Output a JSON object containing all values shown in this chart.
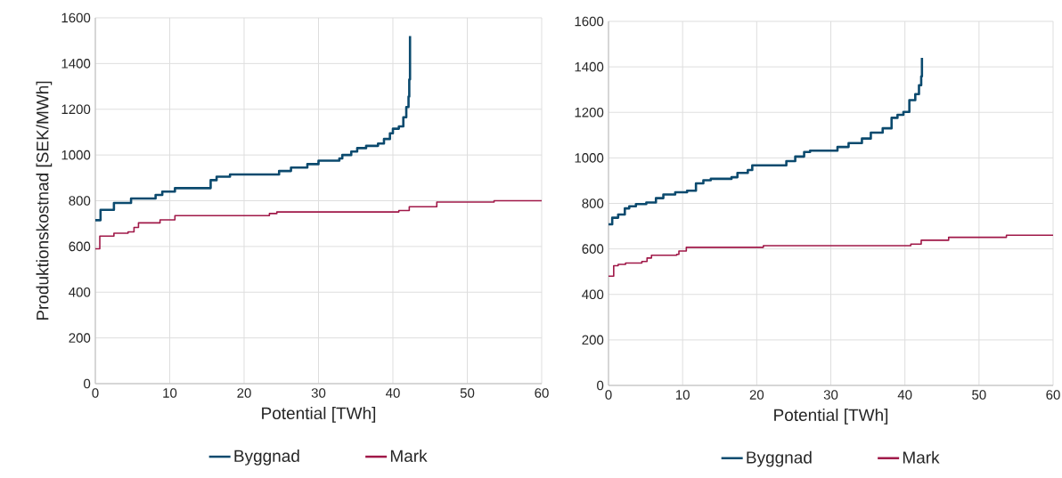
{
  "chart_data": [
    {
      "type": "step",
      "xlabel": "Potential [TWh]",
      "ylabel": "Produktionskostnad [SEK/MWh]",
      "xlim": [
        0,
        60
      ],
      "ylim": [
        0,
        1600
      ],
      "xticks": [
        0,
        10,
        20,
        30,
        40,
        50,
        60
      ],
      "yticks": [
        0,
        200,
        400,
        600,
        800,
        1000,
        1200,
        1400,
        1600
      ],
      "grid": true,
      "legend": "bottom",
      "marker": "none",
      "series": [
        {
          "name": "Byggnad",
          "color": "#0b4a6e",
          "x": [
            0,
            0.7,
            2.5,
            4.8,
            8.1,
            9.0,
            10.7,
            15.5,
            16.3,
            18.1,
            20.1,
            24.7,
            26.3,
            28.5,
            30.0,
            32.8,
            33.2,
            34.4,
            35.2,
            36.4,
            38.0,
            38.8,
            39.6,
            40.0,
            40.8,
            41.4,
            41.8,
            42.1,
            42.2,
            42.3
          ],
          "values": [
            715,
            760,
            790,
            810,
            825,
            840,
            855,
            890,
            905,
            915,
            915,
            930,
            945,
            960,
            975,
            985,
            1000,
            1015,
            1030,
            1040,
            1050,
            1070,
            1095,
            1115,
            1125,
            1165,
            1210,
            1255,
            1330,
            1520
          ]
        },
        {
          "name": "Mark",
          "color": "#a01848",
          "x": [
            0,
            0.6,
            2.5,
            4.4,
            5.2,
            5.8,
            8.7,
            10.7,
            23.4,
            24.4,
            40.8,
            42.2,
            45.9,
            53.6,
            60
          ],
          "values": [
            590,
            645,
            658,
            664,
            683,
            703,
            716,
            735,
            744,
            751,
            757,
            774,
            794,
            800,
            800
          ]
        }
      ]
    },
    {
      "type": "step",
      "xlabel": "Potential [TWh]",
      "xlim": [
        0,
        60
      ],
      "ylim": [
        0,
        1600
      ],
      "xticks": [
        0,
        10,
        20,
        30,
        40,
        50,
        60
      ],
      "yticks": [
        0,
        200,
        400,
        600,
        800,
        1000,
        1200,
        1400,
        1600
      ],
      "grid": true,
      "legend": "bottom",
      "marker": "none",
      "series": [
        {
          "name": "Byggnad",
          "color": "#0b4a6e",
          "x": [
            0,
            0.5,
            1.3,
            2.2,
            2.8,
            3.7,
            5.1,
            6.4,
            7.4,
            9.0,
            10.6,
            11.8,
            12.8,
            13.8,
            16.6,
            17.4,
            18.8,
            19.4,
            24.0,
            25.2,
            26.4,
            27.2,
            30.9,
            32.4,
            34.2,
            35.4,
            37.0,
            38.2,
            39.0,
            39.8,
            40.6,
            41.4,
            41.9,
            42.2,
            42.3
          ],
          "values": [
            708,
            737,
            751,
            778,
            787,
            797,
            804,
            823,
            839,
            849,
            856,
            888,
            902,
            908,
            915,
            934,
            947,
            967,
            986,
            1006,
            1026,
            1032,
            1048,
            1065,
            1085,
            1111,
            1130,
            1176,
            1189,
            1202,
            1254,
            1280,
            1319,
            1358,
            1440
          ]
        },
        {
          "name": "Mark",
          "color": "#a01848",
          "x": [
            0,
            0.7,
            1.3,
            2.3,
            4.5,
            5.2,
            5.8,
            9.2,
            9.5,
            10.5,
            20.9,
            40.8,
            42.2,
            45.9,
            53.7,
            60
          ],
          "values": [
            480,
            526,
            532,
            538,
            545,
            560,
            572,
            576,
            591,
            607,
            614,
            621,
            638,
            651,
            660,
            660
          ]
        }
      ]
    }
  ]
}
